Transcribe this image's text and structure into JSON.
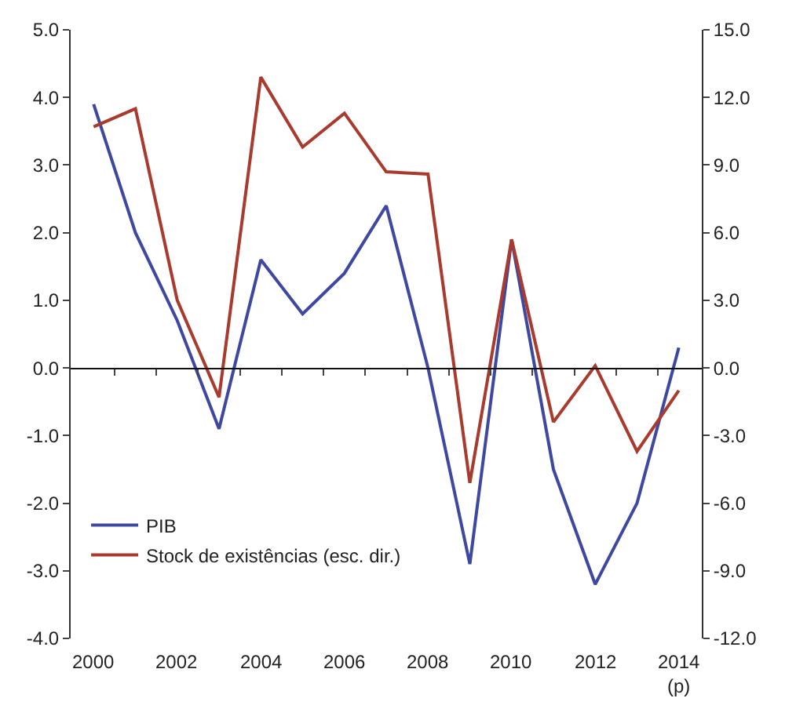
{
  "chart_data": {
    "type": "line",
    "categories": [
      "2000",
      null,
      "2002",
      null,
      "2004",
      null,
      "2006",
      null,
      "2008",
      null,
      "2010",
      null,
      "2012",
      null,
      "2014\n(p)"
    ],
    "series": [
      {
        "name": "PIB",
        "color": "#3f48a0",
        "values": [
          3.9,
          2.0,
          0.7,
          -0.9,
          1.6,
          0.8,
          1.4,
          2.4,
          0.0,
          -2.9,
          1.9,
          -1.5,
          -3.2,
          -2.0,
          0.3
        ]
      },
      {
        "name": "Stock de existências (esc. dir.)",
        "color": "#a83a2e",
        "axis": "y2",
        "values": [
          10.7,
          11.5,
          3.0,
          -1.3,
          12.9,
          9.8,
          11.3,
          8.7,
          8.6,
          -5.1,
          5.7,
          -2.4,
          0.1,
          -3.7,
          -1.0
        ]
      }
    ],
    "ylim": [
      -4,
      5
    ],
    "yticks": [
      {
        "value": -4,
        "label": "-4.0"
      },
      {
        "value": -3,
        "label": "-3.0"
      },
      {
        "value": -2,
        "label": "-2.0"
      },
      {
        "value": -1,
        "label": "-1.0"
      },
      {
        "value": 0,
        "label": "0.0"
      },
      {
        "value": 1,
        "label": "1.0"
      },
      {
        "value": 2,
        "label": "2.0"
      },
      {
        "value": 3,
        "label": "3.0"
      },
      {
        "value": 4,
        "label": "4.0"
      },
      {
        "value": 5,
        "label": "5.0"
      }
    ],
    "y2lim": [
      -12,
      15
    ],
    "y2ticks": [
      {
        "value": -12,
        "label": "-12.0"
      },
      {
        "value": -9,
        "label": "-9.0"
      },
      {
        "value": -6,
        "label": "-6.0"
      },
      {
        "value": -3,
        "label": "-3.0"
      },
      {
        "value": 0,
        "label": "0.0"
      },
      {
        "value": 3,
        "label": "3.0"
      },
      {
        "value": 6,
        "label": "6.0"
      },
      {
        "value": 9,
        "label": "9.0"
      },
      {
        "value": 12,
        "label": "12.0"
      },
      {
        "value": 15,
        "label": "15.0"
      }
    ],
    "legend": "bottom left",
    "marker": "none",
    "line_style": "solid"
  }
}
